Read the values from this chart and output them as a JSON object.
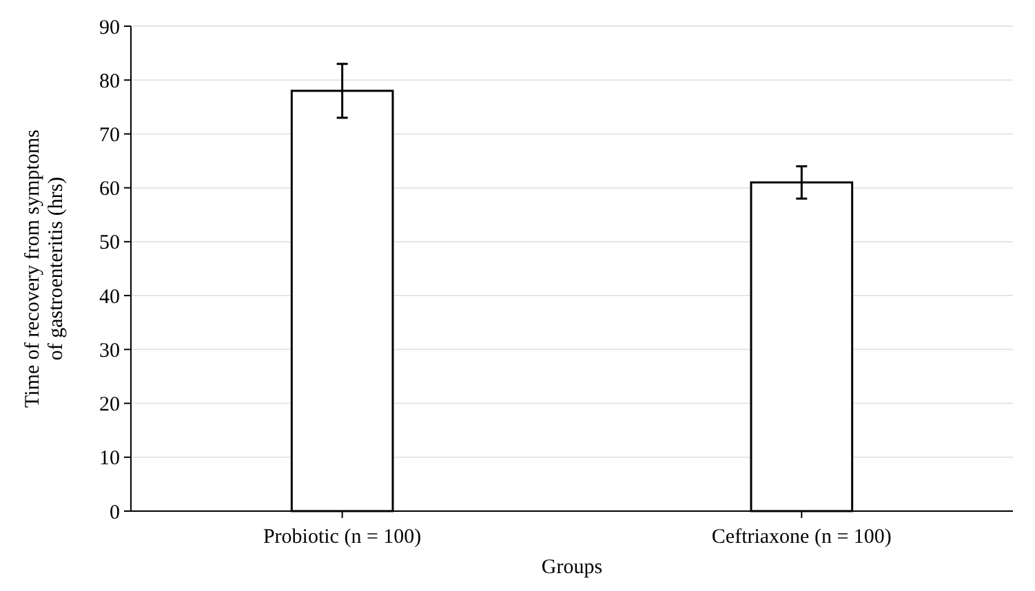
{
  "chart_data": {
    "type": "bar",
    "xlabel": "Groups",
    "ylabel": "Time of recovery from symptoms of gastroenteritis (hrs)",
    "categories": [
      "Probiotic (n = 100)",
      "Ceftriaxone (n = 100)"
    ],
    "values": [
      78,
      61
    ],
    "errors": [
      5,
      3
    ],
    "color": "#ffffff",
    "ylim": [
      0,
      90
    ],
    "yticks": [
      0,
      10,
      20,
      30,
      40,
      50,
      60,
      70,
      80,
      90
    ],
    "grid": "y"
  }
}
